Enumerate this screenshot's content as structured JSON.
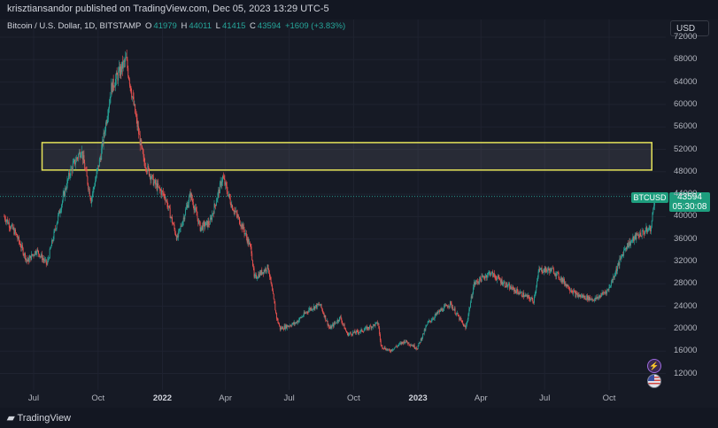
{
  "header": {
    "published_text": "krisztiansandor published on TradingView.com, Dec 05, 2023 13:29 UTC-5"
  },
  "legend": {
    "symbol": "Bitcoin / U.S. Dollar, 1D, BITSTAMP",
    "o_label": "O",
    "o_value": "41979",
    "h_label": "H",
    "h_value": "44011",
    "l_label": "L",
    "l_value": "41415",
    "c_label": "C",
    "c_value": "43594",
    "change": "+1609 (+3.83%)"
  },
  "currency": "USD",
  "price_tag": {
    "symbol": "BTCUSD",
    "price": "43594",
    "countdown": "05:30:08"
  },
  "footer": {
    "brand": "TradingView"
  },
  "icons": [
    "lightning-icon",
    "us-flag-icon",
    "tradingview-logo-icon"
  ],
  "colors": {
    "up": "#26a69a",
    "down": "#ef5350",
    "zone_border": "#e6e35a",
    "background": "#161a25"
  },
  "chart_data": {
    "type": "line",
    "title": "Bitcoin / U.S. Dollar, 1D, BITSTAMP",
    "y_axis_ticks": [
      72000,
      68000,
      64000,
      60000,
      56000,
      52000,
      48000,
      44000,
      40000,
      36000,
      32000,
      28000,
      24000,
      20000,
      16000,
      12000
    ],
    "x_axis_ticks": [
      "Jul",
      "Oct",
      "2022",
      "Apr",
      "Jul",
      "Oct",
      "2023",
      "Apr",
      "Jul",
      "Oct"
    ],
    "bold_x_ticks": [
      "2022",
      "2023"
    ],
    "ylim": [
      9500,
      73000
    ],
    "series": [
      {
        "x": [
          "2021-05-20",
          "2021-06-05",
          "2021-06-22",
          "2021-07-05",
          "2021-07-20",
          "2021-08-05",
          "2021-08-22",
          "2021-09-07",
          "2021-09-21",
          "2021-10-05",
          "2021-10-20",
          "2021-11-10",
          "2021-11-25",
          "2021-12-05",
          "2021-12-20",
          "2022-01-05",
          "2022-01-22",
          "2022-02-10",
          "2022-02-24",
          "2022-03-10",
          "2022-03-28",
          "2022-04-10",
          "2022-04-26",
          "2022-05-08",
          "2022-05-12",
          "2022-06-01",
          "2022-06-13",
          "2022-06-18",
          "2022-07-10",
          "2022-07-30",
          "2022-08-14",
          "2022-08-28",
          "2022-09-12",
          "2022-09-22",
          "2022-10-10",
          "2022-10-28",
          "2022-11-05",
          "2022-11-09",
          "2022-11-21",
          "2022-12-13",
          "2022-12-31",
          "2023-01-15",
          "2023-01-31",
          "2023-02-16",
          "2023-03-10",
          "2023-03-22",
          "2023-04-14",
          "2023-05-10",
          "2023-06-15",
          "2023-06-23",
          "2023-07-13",
          "2023-08-15",
          "2023-09-11",
          "2023-09-30",
          "2023-10-24",
          "2023-11-09",
          "2023-11-30",
          "2023-12-05"
        ],
        "values": [
          40000,
          37000,
          32000,
          34000,
          31500,
          40000,
          48000,
          52000,
          43000,
          51000,
          63000,
          68000,
          57000,
          50000,
          46000,
          43500,
          36000,
          44000,
          38000,
          39000,
          47000,
          42000,
          38000,
          34000,
          29000,
          31000,
          22000,
          20000,
          21000,
          23500,
          24300,
          20000,
          22000,
          19000,
          19500,
          20500,
          21000,
          17000,
          16000,
          17800,
          16550,
          21000,
          23000,
          24500,
          20000,
          28000,
          30000,
          27500,
          25000,
          30500,
          30400,
          26000,
          25200,
          27000,
          34500,
          36500,
          38000,
          43594
        ]
      }
    ],
    "zone": {
      "y_low": 48300,
      "y_high": 53200,
      "x_start": "2021-08-01",
      "x_end": "2023-12-01",
      "color": "#e6e35a"
    },
    "last_price": 43594,
    "grid": true,
    "legend_placement": "top-left"
  }
}
